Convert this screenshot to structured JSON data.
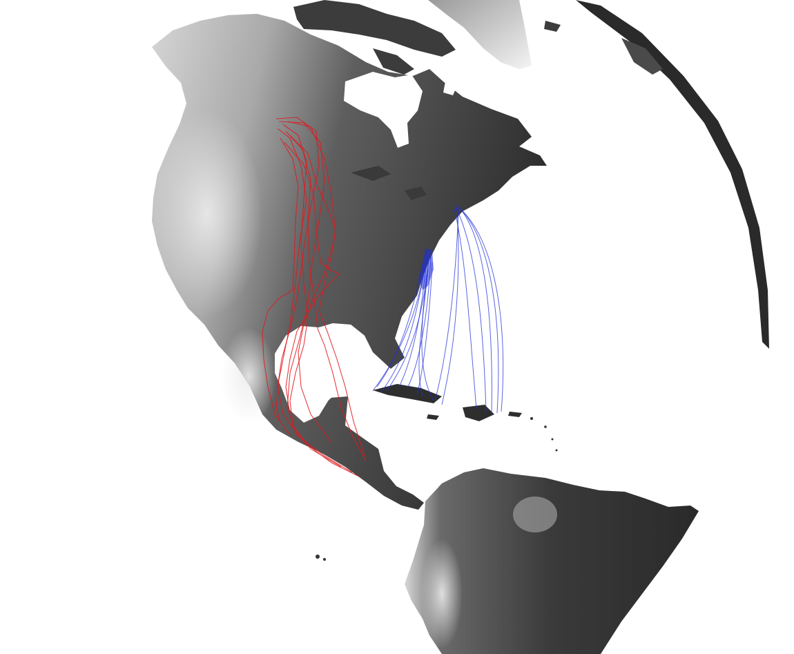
{
  "map": {
    "projection": "orthographic",
    "background": "#ffffff",
    "land_shading": "grayscale-elevation",
    "route_groups": [
      {
        "name": "",
        "color": "#e0191f",
        "tracks": 9
      },
      {
        "name": "",
        "color": "#2130d8",
        "tracks": 16
      }
    ]
  }
}
